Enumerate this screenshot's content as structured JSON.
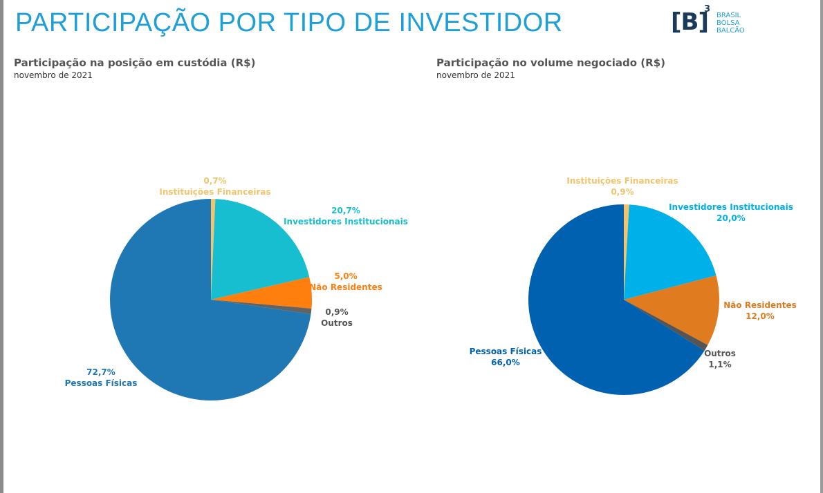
{
  "page_title": "PARTICIPAÇÃO POR TIPO DE INVESTIDOR",
  "logo": {
    "mark": "[B]",
    "sup": "3",
    "words": [
      "BRASIL",
      "BOLSA",
      "BALCÃO"
    ]
  },
  "chart_data": [
    {
      "type": "pie",
      "title": "Participação na posição em custódia (R$)",
      "subtitle": "novembro de 2021",
      "slices": [
        {
          "name": "Instituições Financeiras",
          "value": 0.7,
          "label": "0,7%",
          "color": "#f2c46d",
          "order": "pct-first"
        },
        {
          "name": "Investidores Institucionais",
          "value": 20.7,
          "label": "20,7%",
          "color": "#17becf",
          "order": "pct-first"
        },
        {
          "name": "Não Residentes",
          "value": 5.0,
          "label": "5,0%",
          "color": "#ff7f0e",
          "order": "pct-first"
        },
        {
          "name": "Outros",
          "value": 0.9,
          "label": "0,9%",
          "color": "#636363",
          "order": "pct-first"
        },
        {
          "name": "Pessoas Físicas",
          "value": 72.7,
          "label": "72,7%",
          "color": "#1f77b4",
          "order": "pct-first"
        }
      ]
    },
    {
      "type": "pie",
      "title": "Participação no volume negociado (R$)",
      "subtitle": "novembro de 2021",
      "slices": [
        {
          "name": "Instituições Financeiras",
          "value": 0.9,
          "label": "0,9%",
          "color": "#f2c46d",
          "order": "name-first"
        },
        {
          "name": "Investidores Institucionais",
          "value": 20.0,
          "label": "20,0%",
          "color": "#00b0e8",
          "order": "name-first"
        },
        {
          "name": "Não Residentes",
          "value": 12.0,
          "label": "12,0%",
          "color": "#e07b20",
          "order": "name-first"
        },
        {
          "name": "Outros",
          "value": 1.1,
          "label": "1,1%",
          "color": "#555555",
          "order": "name-first"
        },
        {
          "name": "Pessoas Físicas",
          "value": 66.0,
          "label": "66,0%",
          "color": "#0061b0",
          "order": "name-first"
        }
      ]
    }
  ]
}
